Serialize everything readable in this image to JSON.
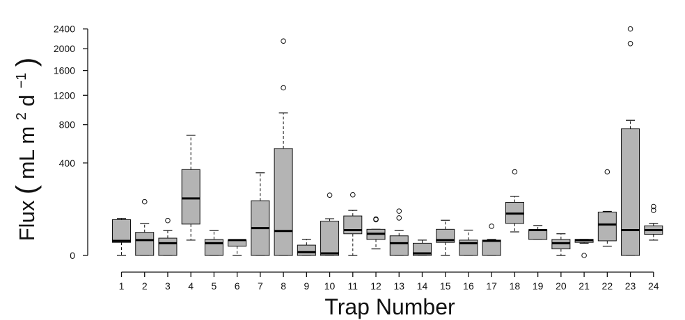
{
  "chart_data": {
    "type": "boxplot",
    "xlabel": "Trap Number",
    "ylabel": {
      "base": "Flux ",
      "open_paren": "(",
      "unit1": "mL m",
      "sup1": "2",
      "unit2": " d",
      "sup2": "−1",
      "close_paren": ")"
    },
    "y_scale": "sqrt",
    "ylim": [
      0,
      2700
    ],
    "y_ticks": [
      0,
      400,
      800,
      1200,
      1600,
      2000,
      2400
    ],
    "grid": false,
    "legend": "none",
    "box_color": "#b4b4b4",
    "categories": [
      "1",
      "2",
      "3",
      "4",
      "5",
      "6",
      "7",
      "8",
      "9",
      "10",
      "11",
      "12",
      "13",
      "14",
      "15",
      "16",
      "17",
      "18",
      "19",
      "20",
      "21",
      "22",
      "23",
      "24"
    ],
    "boxes": [
      {
        "min": 0,
        "q1": 8,
        "median": 10,
        "q3": 60,
        "max": 64,
        "outliers": []
      },
      {
        "min": 0,
        "q1": 0,
        "median": 11,
        "q3": 25,
        "max": 48,
        "outliers": [
          135
        ]
      },
      {
        "min": 0,
        "q1": 0,
        "median": 7,
        "q3": 14,
        "max": 29,
        "outliers": [
          57
        ]
      },
      {
        "min": 11,
        "q1": 46,
        "median": 152,
        "q3": 345,
        "max": 675,
        "outliers": []
      },
      {
        "min": 0,
        "q1": 0,
        "median": 7,
        "q3": 12,
        "max": 29,
        "outliers": []
      },
      {
        "min": 0,
        "q1": 4,
        "median": 11,
        "q3": 11,
        "max": 11,
        "outliers": []
      },
      {
        "min": 0,
        "q1": 0,
        "median": 35,
        "q3": 140,
        "max": 320,
        "outliers": []
      },
      {
        "min": 0,
        "q1": 0,
        "median": 28,
        "q3": 535,
        "max": 950,
        "outliers": [
          1315,
          2150
        ]
      },
      {
        "min": 0,
        "q1": 0,
        "median": 0.5,
        "q3": 5,
        "max": 12,
        "outliers": []
      },
      {
        "min": 0,
        "q1": 0,
        "median": 0.2,
        "q3": 55,
        "max": 63,
        "outliers": [
          170
        ]
      },
      {
        "min": 0,
        "q1": 22,
        "median": 30,
        "q3": 73,
        "max": 95,
        "outliers": [
          172
        ]
      },
      {
        "min": 2,
        "q1": 12,
        "median": 22,
        "q3": 32,
        "max": 32,
        "outliers": [
          62,
          60
        ]
      },
      {
        "min": 0,
        "q1": 0,
        "median": 7,
        "q3": 18,
        "max": 29,
        "outliers": [
          92,
          66
        ]
      },
      {
        "min": 0,
        "q1": 0,
        "median": 0.2,
        "q3": 7,
        "max": 11,
        "outliers": []
      },
      {
        "min": 0,
        "q1": 8,
        "median": 11,
        "q3": 32,
        "max": 58,
        "outliers": []
      },
      {
        "min": 0,
        "q1": 0,
        "median": 7,
        "q3": 11,
        "max": 30,
        "outliers": []
      },
      {
        "min": 0,
        "q1": 0,
        "median": 10,
        "q3": 11,
        "max": 12,
        "outliers": [
          40
        ]
      },
      {
        "min": 26,
        "q1": 48,
        "median": 82,
        "q3": 132,
        "max": 163,
        "outliers": [
          327
        ]
      },
      {
        "min": 12,
        "q1": 12,
        "median": 30,
        "q3": 31,
        "max": 42,
        "outliers": []
      },
      {
        "min": 0,
        "q1": 2,
        "median": 7,
        "q3": 12,
        "max": 22,
        "outliers": []
      },
      {
        "min": 7,
        "q1": 8,
        "median": 11,
        "q3": 12,
        "max": 12,
        "outliers": [
          0
        ]
      },
      {
        "min": 4,
        "q1": 10,
        "median": 45,
        "q3": 88,
        "max": 91,
        "outliers": [
          327
        ]
      },
      {
        "min": 0,
        "q1": 0,
        "median": 30,
        "q3": 750,
        "max": 855,
        "outliers": [
          2400,
          2100
        ]
      },
      {
        "min": 11,
        "q1": 21,
        "median": 30,
        "q3": 41,
        "max": 48,
        "outliers": [
          112,
          95
        ]
      }
    ]
  }
}
